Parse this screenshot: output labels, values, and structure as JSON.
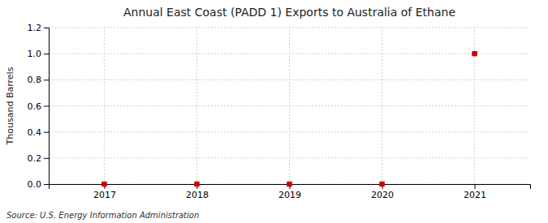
{
  "chart_data": {
    "type": "scatter",
    "title": "Annual East Coast (PADD 1) Exports to Australia of Ethane",
    "ylabel": "Thousand Barrels",
    "annotations": [
      "Source: U.S. Energy Information Administration"
    ],
    "x": [
      2017,
      2018,
      2019,
      2020,
      2021
    ],
    "values": [
      0,
      0,
      0,
      0,
      1.0
    ],
    "color": "#cc0000",
    "marker": "square",
    "xlim": [
      2016.4,
      2021.6
    ],
    "xticks": [
      2017,
      2018,
      2019,
      2020,
      2021
    ],
    "ylim": [
      0.0,
      1.2
    ],
    "yticks": [
      {
        "value": 0.0,
        "label": "0.0"
      },
      0.2,
      0.4,
      0.6,
      0.8,
      {
        "value": 1.0,
        "label": "1.0"
      },
      1.2
    ],
    "grid": true
  }
}
